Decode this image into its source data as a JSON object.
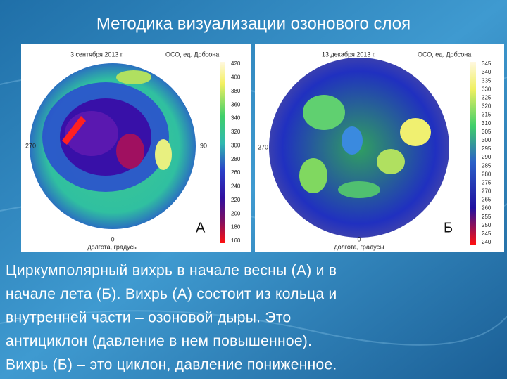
{
  "title": "Методика визуализации озонового слоя",
  "panels": [
    {
      "date": "3 сентября 2013 г.",
      "unit": "ОСО, ед. Добсона",
      "left": "270",
      "right": "90",
      "bottom": "0",
      "axis_label": "долгота, градусы",
      "letter": "А",
      "ticks": [
        420,
        400,
        380,
        360,
        340,
        320,
        300,
        280,
        260,
        240,
        220,
        200,
        180,
        160
      ]
    },
    {
      "date": "13 декабря 2013 г.",
      "unit": "ОСО, ед. Добсона",
      "left": "270",
      "bottom": "0",
      "axis_label": "долгота, градусы",
      "letter": "Б",
      "ticks": [
        345,
        340,
        335,
        330,
        325,
        320,
        315,
        310,
        305,
        300,
        295,
        290,
        285,
        280,
        275,
        270,
        265,
        260,
        255,
        250,
        245,
        240
      ]
    }
  ],
  "body": [
    "Циркумполярный вихрь в начале весны (А) и в",
    "начале лета (Б). Вихрь (А) состоит из кольца и",
    "внутренней части – озоновой дыры. Это",
    "антициклон (давление в нем повышенное).",
    "Вихрь (Б) – это циклон, давление пониженное."
  ]
}
